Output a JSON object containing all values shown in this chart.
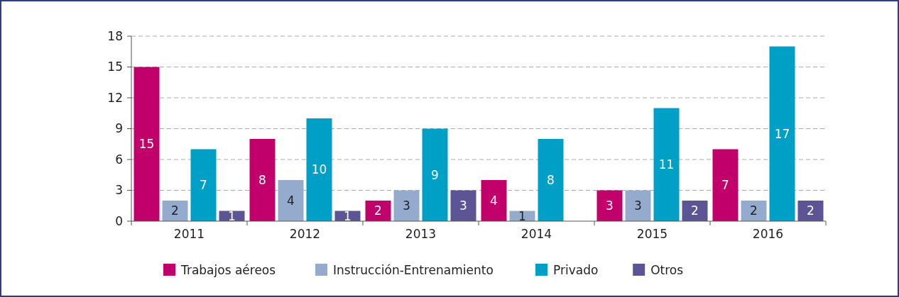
{
  "chart_data": {
    "type": "bar",
    "categories": [
      "2011",
      "2012",
      "2013",
      "2014",
      "2015",
      "2016"
    ],
    "series": [
      {
        "name": "Trabajos aéreos",
        "color": "#c2006b",
        "values": [
          15,
          8,
          2,
          4,
          3,
          7
        ]
      },
      {
        "name": "Instrucción-Entrenamiento",
        "color": "#95abcd",
        "values": [
          2,
          4,
          3,
          1,
          3,
          2
        ]
      },
      {
        "name": "Privado",
        "color": "#00a0c6",
        "values": [
          7,
          10,
          9,
          8,
          11,
          17
        ]
      },
      {
        "name": "Otros",
        "color": "#5b5595",
        "values": [
          1,
          1,
          3,
          null,
          2,
          2
        ]
      }
    ],
    "ylim": [
      0,
      18
    ],
    "yticks": [
      0,
      3,
      6,
      9,
      12,
      15,
      18
    ],
    "grid": "y",
    "legend": "bottom",
    "data_labels": true
  }
}
